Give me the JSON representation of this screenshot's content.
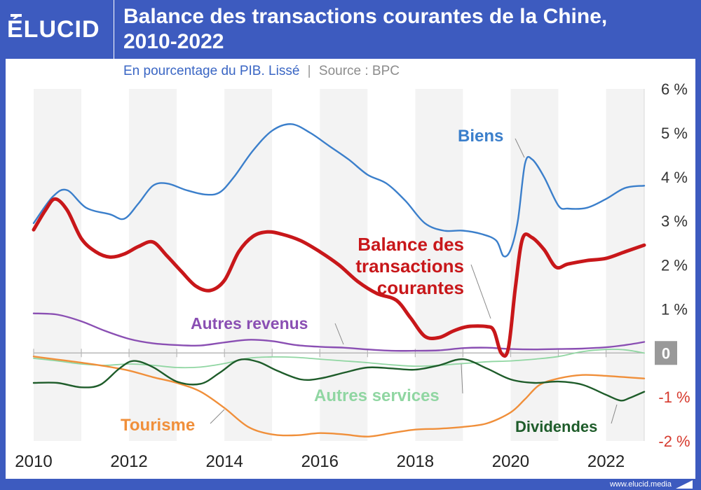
{
  "header": {
    "logo": "ÉLUCID",
    "title_line1": "Balance des transactions courantes de la Chine,",
    "title_line2": "2010-2022"
  },
  "subtitle": {
    "main": "En pourcentage du PIB. Lissé",
    "separator": "|",
    "source": "Source : BPC"
  },
  "footer": {
    "text": "www.elucid.media"
  },
  "colors": {
    "biens": "#3b7fcb",
    "balance": "#c8171a",
    "autres_revenus": "#8a4fb3",
    "autres_services": "#90d6a2",
    "tourisme": "#f08f3a",
    "dividendes": "#1e5c2a",
    "header_bg": "#3d5bbf",
    "negative_tick": "#d63a2e"
  },
  "chart_data": {
    "type": "line",
    "title": "Balance des transactions courantes de la Chine, 2010-2022",
    "subtitle": "En pourcentage du PIB. Lissé | Source : BPC",
    "xlabel": "",
    "ylabel": "",
    "xlim": [
      2010,
      2022.8
    ],
    "ylim": [
      -2,
      6
    ],
    "x_ticks": [
      "2010",
      "2012",
      "2014",
      "2016",
      "2018",
      "2020",
      "2022"
    ],
    "y_ticks": [
      "6 %",
      "5 %",
      "4 %",
      "3 %",
      "2 %",
      "1 %",
      "0",
      "-1 %",
      "-2 %"
    ],
    "y_tick_values": [
      6,
      5,
      4,
      3,
      2,
      1,
      0,
      -1,
      -2
    ],
    "grid": "alternating vertical bands by year",
    "legend": "inline labels",
    "series": [
      {
        "name": "Biens",
        "color": "#3b7fcb",
        "width": 2.4,
        "points": [
          [
            2010,
            2.95
          ],
          [
            2010.4,
            3.55
          ],
          [
            2010.7,
            3.7
          ],
          [
            2011.1,
            3.3
          ],
          [
            2011.6,
            3.15
          ],
          [
            2011.9,
            3.05
          ],
          [
            2012.2,
            3.4
          ],
          [
            2012.5,
            3.8
          ],
          [
            2012.8,
            3.85
          ],
          [
            2013.2,
            3.7
          ],
          [
            2013.6,
            3.6
          ],
          [
            2013.9,
            3.65
          ],
          [
            2014.2,
            4.0
          ],
          [
            2014.6,
            4.6
          ],
          [
            2015.0,
            5.05
          ],
          [
            2015.4,
            5.2
          ],
          [
            2015.8,
            5.0
          ],
          [
            2016.2,
            4.7
          ],
          [
            2016.6,
            4.4
          ],
          [
            2017.0,
            4.05
          ],
          [
            2017.4,
            3.85
          ],
          [
            2017.8,
            3.45
          ],
          [
            2018.2,
            2.95
          ],
          [
            2018.6,
            2.78
          ],
          [
            2019.0,
            2.78
          ],
          [
            2019.4,
            2.7
          ],
          [
            2019.7,
            2.55
          ],
          [
            2019.85,
            2.2
          ],
          [
            2020.0,
            2.35
          ],
          [
            2020.15,
            3.0
          ],
          [
            2020.3,
            4.3
          ],
          [
            2020.45,
            4.4
          ],
          [
            2020.7,
            4.0
          ],
          [
            2021.0,
            3.35
          ],
          [
            2021.2,
            3.28
          ],
          [
            2021.6,
            3.3
          ],
          [
            2022.0,
            3.5
          ],
          [
            2022.4,
            3.75
          ],
          [
            2022.8,
            3.8
          ]
        ]
      },
      {
        "name": "Balance des transactions courantes",
        "color": "#c8171a",
        "width": 5,
        "points": [
          [
            2010,
            2.8
          ],
          [
            2010.25,
            3.25
          ],
          [
            2010.45,
            3.5
          ],
          [
            2010.7,
            3.25
          ],
          [
            2011.0,
            2.6
          ],
          [
            2011.3,
            2.3
          ],
          [
            2011.6,
            2.18
          ],
          [
            2011.9,
            2.25
          ],
          [
            2012.2,
            2.42
          ],
          [
            2012.5,
            2.52
          ],
          [
            2012.8,
            2.2
          ],
          [
            2013.1,
            1.85
          ],
          [
            2013.4,
            1.52
          ],
          [
            2013.7,
            1.42
          ],
          [
            2014.0,
            1.65
          ],
          [
            2014.3,
            2.3
          ],
          [
            2014.6,
            2.65
          ],
          [
            2014.9,
            2.75
          ],
          [
            2015.2,
            2.7
          ],
          [
            2015.6,
            2.55
          ],
          [
            2016.0,
            2.3
          ],
          [
            2016.4,
            2.0
          ],
          [
            2016.8,
            1.62
          ],
          [
            2017.2,
            1.35
          ],
          [
            2017.6,
            1.2
          ],
          [
            2017.9,
            0.8
          ],
          [
            2018.2,
            0.38
          ],
          [
            2018.5,
            0.35
          ],
          [
            2018.8,
            0.5
          ],
          [
            2019.1,
            0.6
          ],
          [
            2019.5,
            0.6
          ],
          [
            2019.65,
            0.5
          ],
          [
            2019.8,
            0.0
          ],
          [
            2019.95,
            0.1
          ],
          [
            2020.1,
            1.5
          ],
          [
            2020.25,
            2.6
          ],
          [
            2020.45,
            2.62
          ],
          [
            2020.7,
            2.35
          ],
          [
            2020.95,
            1.95
          ],
          [
            2021.2,
            2.02
          ],
          [
            2021.6,
            2.1
          ],
          [
            2022.0,
            2.15
          ],
          [
            2022.4,
            2.3
          ],
          [
            2022.8,
            2.45
          ]
        ]
      },
      {
        "name": "Autres revenus",
        "color": "#8a4fb3",
        "width": 2.4,
        "points": [
          [
            2010,
            0.9
          ],
          [
            2010.5,
            0.87
          ],
          [
            2011.0,
            0.72
          ],
          [
            2011.5,
            0.5
          ],
          [
            2012.0,
            0.32
          ],
          [
            2012.5,
            0.22
          ],
          [
            2013.0,
            0.18
          ],
          [
            2013.5,
            0.17
          ],
          [
            2014.0,
            0.24
          ],
          [
            2014.5,
            0.3
          ],
          [
            2015.0,
            0.27
          ],
          [
            2015.5,
            0.18
          ],
          [
            2016.0,
            0.14
          ],
          [
            2016.5,
            0.12
          ],
          [
            2017.0,
            0.08
          ],
          [
            2017.5,
            0.05
          ],
          [
            2018.0,
            0.05
          ],
          [
            2018.5,
            0.06
          ],
          [
            2019.0,
            0.11
          ],
          [
            2019.5,
            0.12
          ],
          [
            2020.0,
            0.09
          ],
          [
            2020.5,
            0.08
          ],
          [
            2021.0,
            0.09
          ],
          [
            2021.5,
            0.1
          ],
          [
            2022.0,
            0.13
          ],
          [
            2022.4,
            0.18
          ],
          [
            2022.8,
            0.25
          ]
        ]
      },
      {
        "name": "Autres services",
        "color": "#90d6a2",
        "width": 1.8,
        "points": [
          [
            2010,
            -0.12
          ],
          [
            2010.5,
            -0.18
          ],
          [
            2011.0,
            -0.25
          ],
          [
            2011.5,
            -0.28
          ],
          [
            2012.0,
            -0.25
          ],
          [
            2012.5,
            -0.28
          ],
          [
            2013.0,
            -0.33
          ],
          [
            2013.5,
            -0.32
          ],
          [
            2014.0,
            -0.24
          ],
          [
            2014.5,
            -0.12
          ],
          [
            2015.0,
            -0.09
          ],
          [
            2015.5,
            -0.1
          ],
          [
            2016.0,
            -0.14
          ],
          [
            2016.5,
            -0.18
          ],
          [
            2017.0,
            -0.22
          ],
          [
            2017.5,
            -0.27
          ],
          [
            2018.0,
            -0.3
          ],
          [
            2018.5,
            -0.28
          ],
          [
            2019.0,
            -0.24
          ],
          [
            2019.5,
            -0.2
          ],
          [
            2020.0,
            -0.18
          ],
          [
            2020.5,
            -0.14
          ],
          [
            2021.0,
            -0.08
          ],
          [
            2021.5,
            0.03
          ],
          [
            2022.0,
            0.08
          ],
          [
            2022.4,
            0.07
          ],
          [
            2022.8,
            0.0
          ]
        ]
      },
      {
        "name": "Tourisme",
        "color": "#f08f3a",
        "width": 2.4,
        "points": [
          [
            2010,
            -0.08
          ],
          [
            2010.5,
            -0.15
          ],
          [
            2011.0,
            -0.22
          ],
          [
            2011.5,
            -0.3
          ],
          [
            2012.0,
            -0.4
          ],
          [
            2012.5,
            -0.55
          ],
          [
            2013.0,
            -0.68
          ],
          [
            2013.5,
            -0.88
          ],
          [
            2014.0,
            -1.25
          ],
          [
            2014.5,
            -1.68
          ],
          [
            2015.0,
            -1.85
          ],
          [
            2015.5,
            -1.87
          ],
          [
            2016.0,
            -1.82
          ],
          [
            2016.5,
            -1.85
          ],
          [
            2017.0,
            -1.9
          ],
          [
            2017.5,
            -1.82
          ],
          [
            2018.0,
            -1.74
          ],
          [
            2018.5,
            -1.72
          ],
          [
            2019.0,
            -1.68
          ],
          [
            2019.5,
            -1.6
          ],
          [
            2020.0,
            -1.35
          ],
          [
            2020.3,
            -1.05
          ],
          [
            2020.6,
            -0.73
          ],
          [
            2021.0,
            -0.58
          ],
          [
            2021.5,
            -0.5
          ],
          [
            2022.0,
            -0.52
          ],
          [
            2022.4,
            -0.55
          ],
          [
            2022.8,
            -0.58
          ]
        ]
      },
      {
        "name": "Dividendes",
        "color": "#1e5c2a",
        "width": 2.4,
        "points": [
          [
            2010,
            -0.68
          ],
          [
            2010.5,
            -0.68
          ],
          [
            2011.0,
            -0.78
          ],
          [
            2011.4,
            -0.72
          ],
          [
            2011.8,
            -0.35
          ],
          [
            2012.1,
            -0.18
          ],
          [
            2012.5,
            -0.32
          ],
          [
            2013.0,
            -0.65
          ],
          [
            2013.5,
            -0.7
          ],
          [
            2013.9,
            -0.45
          ],
          [
            2014.3,
            -0.16
          ],
          [
            2014.7,
            -0.2
          ],
          [
            2015.1,
            -0.4
          ],
          [
            2015.6,
            -0.6
          ],
          [
            2016.0,
            -0.58
          ],
          [
            2016.5,
            -0.45
          ],
          [
            2017.0,
            -0.33
          ],
          [
            2017.5,
            -0.35
          ],
          [
            2018.0,
            -0.38
          ],
          [
            2018.5,
            -0.28
          ],
          [
            2019.0,
            -0.14
          ],
          [
            2019.5,
            -0.35
          ],
          [
            2020.0,
            -0.6
          ],
          [
            2020.5,
            -0.68
          ],
          [
            2021.0,
            -0.65
          ],
          [
            2021.5,
            -0.72
          ],
          [
            2022.0,
            -0.95
          ],
          [
            2022.3,
            -1.08
          ],
          [
            2022.5,
            -1.02
          ],
          [
            2022.8,
            -0.88
          ]
        ]
      }
    ],
    "labels": [
      {
        "text": "Biens",
        "color": "#3b7fcb"
      },
      {
        "text": "Balance des",
        "color": "#c8171a"
      },
      {
        "text": "transactions",
        "color": "#c8171a"
      },
      {
        "text": "courantes",
        "color": "#c8171a"
      },
      {
        "text": "Autres revenus",
        "color": "#8a4fb3"
      },
      {
        "text": "Autres services",
        "color": "#90d6a2"
      },
      {
        "text": "Tourisme",
        "color": "#f08f3a"
      },
      {
        "text": "Dividendes",
        "color": "#1e5c2a"
      }
    ]
  }
}
